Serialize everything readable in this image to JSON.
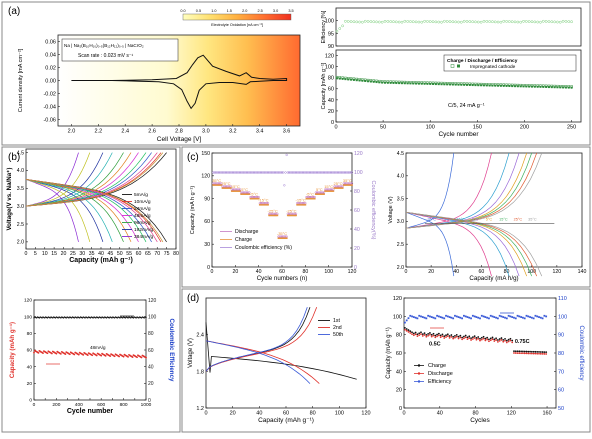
{
  "panel_labels": {
    "a": "(a)",
    "b": "(b)",
    "c": "(c)",
    "d": "(d)"
  },
  "chart_data": [
    {
      "id": "a1",
      "type": "line",
      "title": "",
      "xlabel": "Cell Voltage [V]",
      "ylabel": "Current density [mA cm⁻²]",
      "xlim": [
        1.9,
        3.7
      ],
      "ylim": [
        -0.07,
        0.07
      ],
      "xticks": [
        2.0,
        2.2,
        2.4,
        2.6,
        2.8,
        3.0,
        3.2,
        3.4,
        3.6
      ],
      "yticks": [
        -0.06,
        -0.04,
        -0.02,
        0.0,
        0.02,
        0.04,
        0.06
      ],
      "colorbar": {
        "title": "Electrolyte Oxidation [nA cm⁻²]",
        "ticks": [
          "0.0",
          "0.5",
          "1.0",
          "1.5",
          "2.0",
          "2.5",
          "3.0",
          "3.5"
        ],
        "colors": [
          "#ffffc0",
          "#ffe070",
          "#ffb040",
          "#ff7030",
          "#f03020"
        ]
      },
      "legend": [
        "Na | Na₂(B₁₀H₁₀)₀.₅(B₁₂H₁₂)₀.₅ | NaCrO₂",
        "Scan rate : 0.023 mV s⁻¹"
      ],
      "series": [
        {
          "color": "#111111",
          "x": [
            2.0,
            2.3,
            2.6,
            2.78,
            2.86,
            2.9,
            2.94,
            2.98,
            3.05,
            3.15,
            3.25,
            3.3,
            3.34,
            3.4,
            3.5,
            3.6,
            3.6,
            3.5,
            3.4,
            3.33,
            3.3,
            3.2,
            3.1,
            3.0,
            2.95,
            2.92,
            2.89,
            2.86,
            2.82,
            2.76,
            2.65,
            2.5,
            2.3,
            2.0
          ],
          "y": [
            0.0,
            0.0,
            0.001,
            0.003,
            0.012,
            0.024,
            0.035,
            0.039,
            0.022,
            0.014,
            0.007,
            0.012,
            0.005,
            0.003,
            0.002,
            0.003,
            0.0,
            0.0,
            -0.001,
            -0.002,
            -0.006,
            -0.003,
            -0.003,
            -0.005,
            -0.015,
            -0.035,
            -0.043,
            -0.032,
            -0.014,
            -0.005,
            -0.002,
            -0.001,
            0.0,
            0.0
          ]
        }
      ]
    },
    {
      "id": "a2",
      "type": "scatter",
      "xlabel": "Cycle number",
      "ylabel_top": "Efficiency [%]",
      "ylabel": "Capacity [mAh g⁻¹]",
      "xlim": [
        0,
        260
      ],
      "ylim": [
        0,
        130
      ],
      "ylim_top": [
        90,
        105
      ],
      "xticks": [
        0,
        50,
        100,
        150,
        200,
        250
      ],
      "yticks": [
        0,
        20,
        40,
        60,
        80,
        100,
        120
      ],
      "yticks_top": [
        90,
        95,
        100
      ],
      "legend": [
        "Charge / Discharge / Efficiency",
        "Impregnated cathode"
      ],
      "annotation": "C/5, 24 mA g⁻¹",
      "series": [
        {
          "name": "Charge",
          "color": "#2e8b3a",
          "x": [
            1,
            50,
            100,
            150,
            200,
            250
          ],
          "y": [
            80,
            72,
            69,
            67,
            65,
            63
          ]
        },
        {
          "name": "Discharge",
          "color": "#2e8b3a",
          "x": [
            1,
            50,
            100,
            150,
            200,
            250
          ],
          "y": [
            78,
            71,
            68,
            66,
            64,
            62
          ]
        },
        {
          "name": "Efficiency",
          "color": "#7fcf7f",
          "x": [
            1,
            10,
            50,
            100,
            150,
            200,
            250
          ],
          "y": [
            96,
            99,
            99.5,
            99.6,
            99.7,
            99.7,
            99.7
          ]
        }
      ]
    },
    {
      "id": "b1",
      "type": "line",
      "xlabel": "Capacity (mAh g⁻¹)",
      "ylabel": "Voltage(V vs. Na/Na⁺)",
      "xlim": [
        0,
        80
      ],
      "ylim": [
        1.8,
        4.6
      ],
      "xticks": [
        0,
        5,
        10,
        15,
        20,
        25,
        30,
        35,
        40,
        45,
        50,
        55,
        60,
        65,
        70,
        75,
        80
      ],
      "yticks": [
        2.0,
        2.5,
        3.0,
        3.5,
        4.0,
        4.5
      ],
      "series": [
        {
          "name": "5mA/g",
          "color": "#111111",
          "cap": 75
        },
        {
          "name": "10mA/g",
          "color": "#e0322c",
          "cap": 72
        },
        {
          "name": "24mA/g",
          "color": "#2a55c8",
          "cap": 67
        },
        {
          "name": "48mA/g",
          "color": "#d42ad4",
          "cap": 60
        },
        {
          "name": "96mA/g",
          "color": "#2e9e3a",
          "cap": 52
        },
        {
          "name": "192mA/g",
          "color": "#1a2e9e",
          "cap": 41
        },
        {
          "name": "384mA/g",
          "color": "#8a2ad4",
          "cap": 28
        }
      ],
      "extra_colors": [
        "#c0c020",
        "#20b0b0",
        "#e08020",
        "#20c060",
        "#e04090",
        "#c89030"
      ]
    },
    {
      "id": "b2",
      "type": "scatter",
      "xlabel": "Cycle number",
      "ylabel": "Capacity (mAh g⁻¹)",
      "y2label": "Coulombic Efficiency",
      "xlim": [
        0,
        1000
      ],
      "ylim": [
        0,
        120
      ],
      "y2lim": [
        0,
        120
      ],
      "xticks": [
        0,
        100,
        200,
        300,
        400,
        500,
        600,
        700,
        800,
        900,
        1000
      ],
      "yticks": [
        0,
        20,
        40,
        60,
        80,
        100,
        120
      ],
      "y2ticks": [
        0,
        20,
        40,
        60,
        80,
        100,
        120
      ],
      "annotation": "48mA/g",
      "series": [
        {
          "name": "Capacity",
          "color": "#e0322c",
          "x": [
            0,
            100,
            300,
            500,
            700,
            900,
            1000
          ],
          "y": [
            58,
            56,
            55,
            54,
            53,
            52,
            51
          ]
        },
        {
          "name": "Coulombic Efficiency",
          "color": "#111111",
          "x": [
            0,
            500,
            1000
          ],
          "y": [
            99,
            99,
            99
          ]
        }
      ]
    },
    {
      "id": "c1",
      "type": "scatter",
      "xlabel": "Cycle numbers (n)",
      "ylabel": "Capacity (mA h g⁻¹)",
      "y2label": "Coulombic efficiency(%)",
      "xlim": [
        0,
        120
      ],
      "ylim": [
        0,
        150
      ],
      "y2lim": [
        0,
        120
      ],
      "xticks": [
        0,
        20,
        40,
        60,
        80,
        100,
        120
      ],
      "yticks": [
        0,
        30,
        60,
        90,
        120,
        150
      ],
      "y2ticks": [
        0,
        20,
        40,
        60,
        80,
        100,
        120
      ],
      "temps": [
        "35°C",
        "25°C",
        "15°C",
        "5°C",
        "-5°C",
        "-15°C",
        "-25°C",
        "-35°C",
        "-25°C",
        "-15°C",
        "-5°C",
        "5°C",
        "15°C",
        "25°C",
        "35°C"
      ],
      "temp_caps": [
        108,
        104,
        100,
        96,
        90,
        82,
        68,
        38,
        68,
        82,
        90,
        96,
        100,
        104,
        108
      ],
      "legend": [
        "Discharge",
        "Charge",
        "Coulombic efficiency (%)"
      ],
      "colors": {
        "discharge": "#c47ac0",
        "charge": "#e8943a",
        "ce": "#a88ad8"
      }
    },
    {
      "id": "c2",
      "type": "line",
      "xlabel": "Capacity (mA h/g)",
      "ylabel": "Voltage (V)",
      "xlim": [
        0,
        140
      ],
      "ylim": [
        2.0,
        4.5
      ],
      "xticks": [
        0,
        20,
        40,
        60,
        80,
        100,
        120,
        140
      ],
      "yticks": [
        2.0,
        2.5,
        3.0,
        3.5,
        4.0,
        4.5
      ],
      "temp_labels": [
        "-35°C",
        "-25°C",
        "-15°C",
        "-5°C",
        "5°C",
        "15°C",
        "25°C",
        "35°C"
      ],
      "caps": [
        38,
        68,
        82,
        90,
        96,
        100,
        104,
        108
      ],
      "colors": [
        "#3a6ad8",
        "#e04090",
        "#2ea0d0",
        "#9a6ad8",
        "#e0a020",
        "#40b060",
        "#e05a30",
        "#a0a0a0"
      ]
    },
    {
      "id": "d1",
      "type": "line",
      "xlabel": "Capacity (mAh g⁻¹)",
      "ylabel": "Voltage (V)",
      "xlim": [
        0,
        120
      ],
      "ylim": [
        1.2,
        3.0
      ],
      "xticks": [
        0,
        20,
        40,
        60,
        80,
        100,
        120
      ],
      "yticks": [
        1.2,
        1.8,
        2.4
      ],
      "series": [
        {
          "name": "1st",
          "color": "#111111",
          "cap": 113
        },
        {
          "name": "2nd",
          "color": "#e0322c",
          "cap": 85
        },
        {
          "name": "50th",
          "color": "#3a5ad8",
          "cap": 78
        }
      ]
    },
    {
      "id": "d2",
      "type": "scatter",
      "xlabel": "Cycles",
      "ylabel": "Capacity (mAh g⁻¹)",
      "y2label": "Coulombic efficiency",
      "xlim": [
        0,
        170
      ],
      "ylim": [
        0,
        120
      ],
      "y2lim": [
        50,
        110
      ],
      "xticks": [
        0,
        40,
        80,
        120,
        160
      ],
      "yticks": [
        0,
        20,
        40,
        60,
        80,
        100,
        120
      ],
      "y2ticks": [
        50,
        60,
        70,
        80,
        90,
        100,
        110
      ],
      "annotations": [
        "0.5C",
        "0.75C"
      ],
      "legend": [
        "Charge",
        "Discharge",
        "Efficiency"
      ],
      "series": [
        {
          "name": "Charge",
          "color": "#111111",
          "x": [
            1,
            10,
            40,
            80,
            120,
            125,
            160
          ],
          "y": [
            87,
            82,
            79,
            76,
            73,
            62,
            60
          ]
        },
        {
          "name": "Discharge",
          "color": "#e0322c",
          "x": [
            1,
            10,
            40,
            80,
            120,
            125,
            160
          ],
          "y": [
            85,
            81,
            78,
            75,
            72,
            61,
            59
          ]
        },
        {
          "name": "Efficiency",
          "color": "#3a5ad8",
          "x": [
            1,
            10,
            80,
            160
          ],
          "y": [
            97,
            100,
            100,
            100
          ]
        }
      ]
    }
  ]
}
